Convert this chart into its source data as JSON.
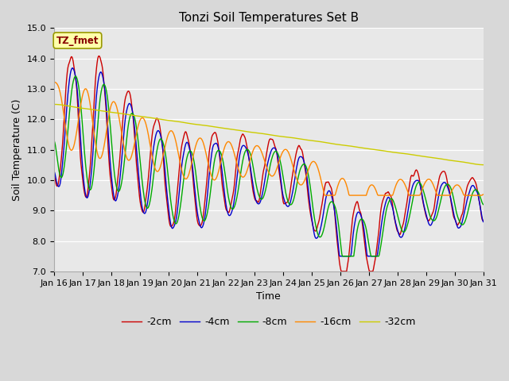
{
  "title": "Tonzi Soil Temperatures Set B",
  "xlabel": "Time",
  "ylabel": "Soil Temperature (C)",
  "ylim": [
    7.0,
    15.0
  ],
  "yticks": [
    7.0,
    8.0,
    9.0,
    10.0,
    11.0,
    12.0,
    13.0,
    14.0,
    15.0
  ],
  "figure_bg_color": "#d8d8d8",
  "plot_bg_color": "#e8e8e8",
  "legend_labels": [
    "-2cm",
    "-4cm",
    "-8cm",
    "-16cm",
    "-32cm"
  ],
  "legend_colors": [
    "#cc0000",
    "#0000cc",
    "#00aa00",
    "#ff8800",
    "#cccc00"
  ],
  "label_box_color": "#ffffaa",
  "label_box_text": "TZ_fmet",
  "label_box_text_color": "#880000",
  "title_fontsize": 11,
  "axis_label_fontsize": 9,
  "tick_fontsize": 8
}
